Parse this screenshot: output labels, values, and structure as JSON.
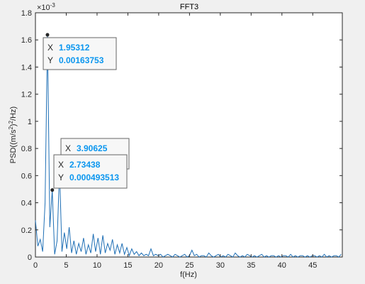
{
  "chart_data": {
    "type": "line",
    "title": "FFT3",
    "xlabel": "f(Hz)",
    "ylabel": "PSD((m/s^2)^2/Hz)",
    "y_exponent": "×10^-3",
    "xlim": [
      0,
      49.8
    ],
    "ylim": [
      0,
      0.0018
    ],
    "x_ticks": [
      "0",
      "5",
      "10",
      "15",
      "20",
      "25",
      "30",
      "35",
      "40",
      "45"
    ],
    "y_ticks": [
      "0",
      "0.2",
      "0.4",
      "0.6",
      "0.8",
      "1",
      "1.2",
      "1.4",
      "1.6",
      "1.8"
    ],
    "grid": false,
    "line_color": "#1f6fb5",
    "series": [
      {
        "x": [
          0,
          0.39,
          0.78,
          1.17,
          1.56,
          1.95,
          2.34,
          2.73,
          3.12,
          3.52,
          3.91,
          4.3,
          4.69,
          5.08,
          5.47,
          5.86,
          6.25,
          6.64,
          7.03,
          7.42,
          7.81,
          8.2,
          8.59,
          8.98,
          9.38,
          9.77,
          10.16,
          10.55,
          10.94,
          11.33,
          11.72,
          12.11,
          12.5,
          12.89,
          13.28,
          13.67,
          14.06,
          14.45,
          14.84,
          15.23,
          15.63,
          16.02,
          16.41,
          16.8,
          17.19,
          17.58,
          17.97,
          18.36,
          18.75,
          19.14,
          19.53,
          19.92,
          20.31,
          20.7,
          21.09,
          21.48,
          21.88,
          22.27,
          22.66,
          23.05,
          23.44,
          23.83,
          24.22,
          24.61,
          25.0,
          25.39,
          25.78,
          26.17,
          26.56,
          26.95,
          27.34,
          27.73,
          28.13,
          28.52,
          28.91,
          29.3,
          29.69,
          30.08,
          30.47,
          30.86,
          31.25,
          31.64,
          32.03,
          32.42,
          32.81,
          33.2,
          33.59,
          33.98,
          34.38,
          34.77,
          35.16,
          35.55,
          35.94,
          36.33,
          36.72,
          37.11,
          37.5,
          37.89,
          38.28,
          38.67,
          39.06,
          39.45,
          39.84,
          40.23,
          40.63,
          41.02,
          41.41,
          41.8,
          42.19,
          42.58,
          42.97,
          43.36,
          43.75,
          44.14,
          44.53,
          44.92,
          45.31,
          45.7,
          46.09,
          46.48,
          46.88,
          47.27,
          47.66,
          48.05,
          48.44,
          48.83,
          49.22,
          49.61
        ],
        "y": [
          0.00027,
          8e-05,
          0.00013,
          4e-05,
          0.0004,
          0.00163753,
          0.00022,
          0.000493513,
          2e-05,
          0.00012,
          0.00064,
          4e-05,
          0.00018,
          6e-05,
          0.00022,
          3e-05,
          0.00012,
          2e-05,
          0.0001,
          4e-05,
          0.00014,
          2e-05,
          9e-05,
          3e-05,
          0.00017,
          4e-05,
          0.00014,
          2e-05,
          0.00016,
          3e-05,
          0.0001,
          5e-05,
          0.00013,
          2e-05,
          9e-05,
          3e-05,
          0.0001,
          2e-05,
          7e-05,
          1e-05,
          6e-05,
          2e-05,
          4e-05,
          1e-05,
          3e-05,
          1e-05,
          2e-05,
          1e-05,
          6e-05,
          1e-05,
          2e-05,
          1e-05,
          2e-05,
          0.0,
          1e-05,
          2e-05,
          1e-05,
          0.0,
          2e-05,
          1e-05,
          0.0,
          1e-05,
          2e-05,
          0.0,
          1e-05,
          5e-05,
          1e-05,
          2e-05,
          0.0,
          1e-05,
          1e-05,
          0.0,
          3e-05,
          1e-05,
          0.0,
          1e-05,
          2e-05,
          0.0,
          1e-05,
          0.0,
          2e-05,
          1e-05,
          0.0,
          3e-05,
          1e-05,
          0.0,
          1e-05,
          0.0,
          2e-05,
          1e-05,
          0.0,
          1e-05,
          0.0,
          1e-05,
          2e-05,
          0.0,
          1e-05,
          0.0,
          1e-05,
          1e-05,
          0.0,
          1e-05,
          0.0,
          1e-05,
          1e-05,
          0.0,
          2e-05,
          0.0,
          1e-05,
          0.0,
          1e-05,
          1e-05,
          0.0,
          1e-05,
          0.0,
          1e-05,
          1e-05,
          0.0,
          1e-05,
          0.0,
          2e-05,
          0.0,
          1e-05,
          0.0,
          1e-05,
          1e-05,
          0.0,
          2e-05
        ]
      }
    ],
    "datatips": [
      {
        "x_label": "X",
        "x_value": "1.95312",
        "y_label": "Y",
        "y_value": "0.00163753",
        "x": 1.95312,
        "y": 0.00163753
      },
      {
        "x_label": "X",
        "x_value": "3.90625",
        "y_label": "Y",
        "y_value": "",
        "x": 3.90625,
        "y": 0.00064
      },
      {
        "x_label": "X",
        "x_value": "2.73438",
        "y_label": "Y",
        "y_value": "0.000493513",
        "x": 2.73438,
        "y": 0.000493513
      }
    ]
  }
}
